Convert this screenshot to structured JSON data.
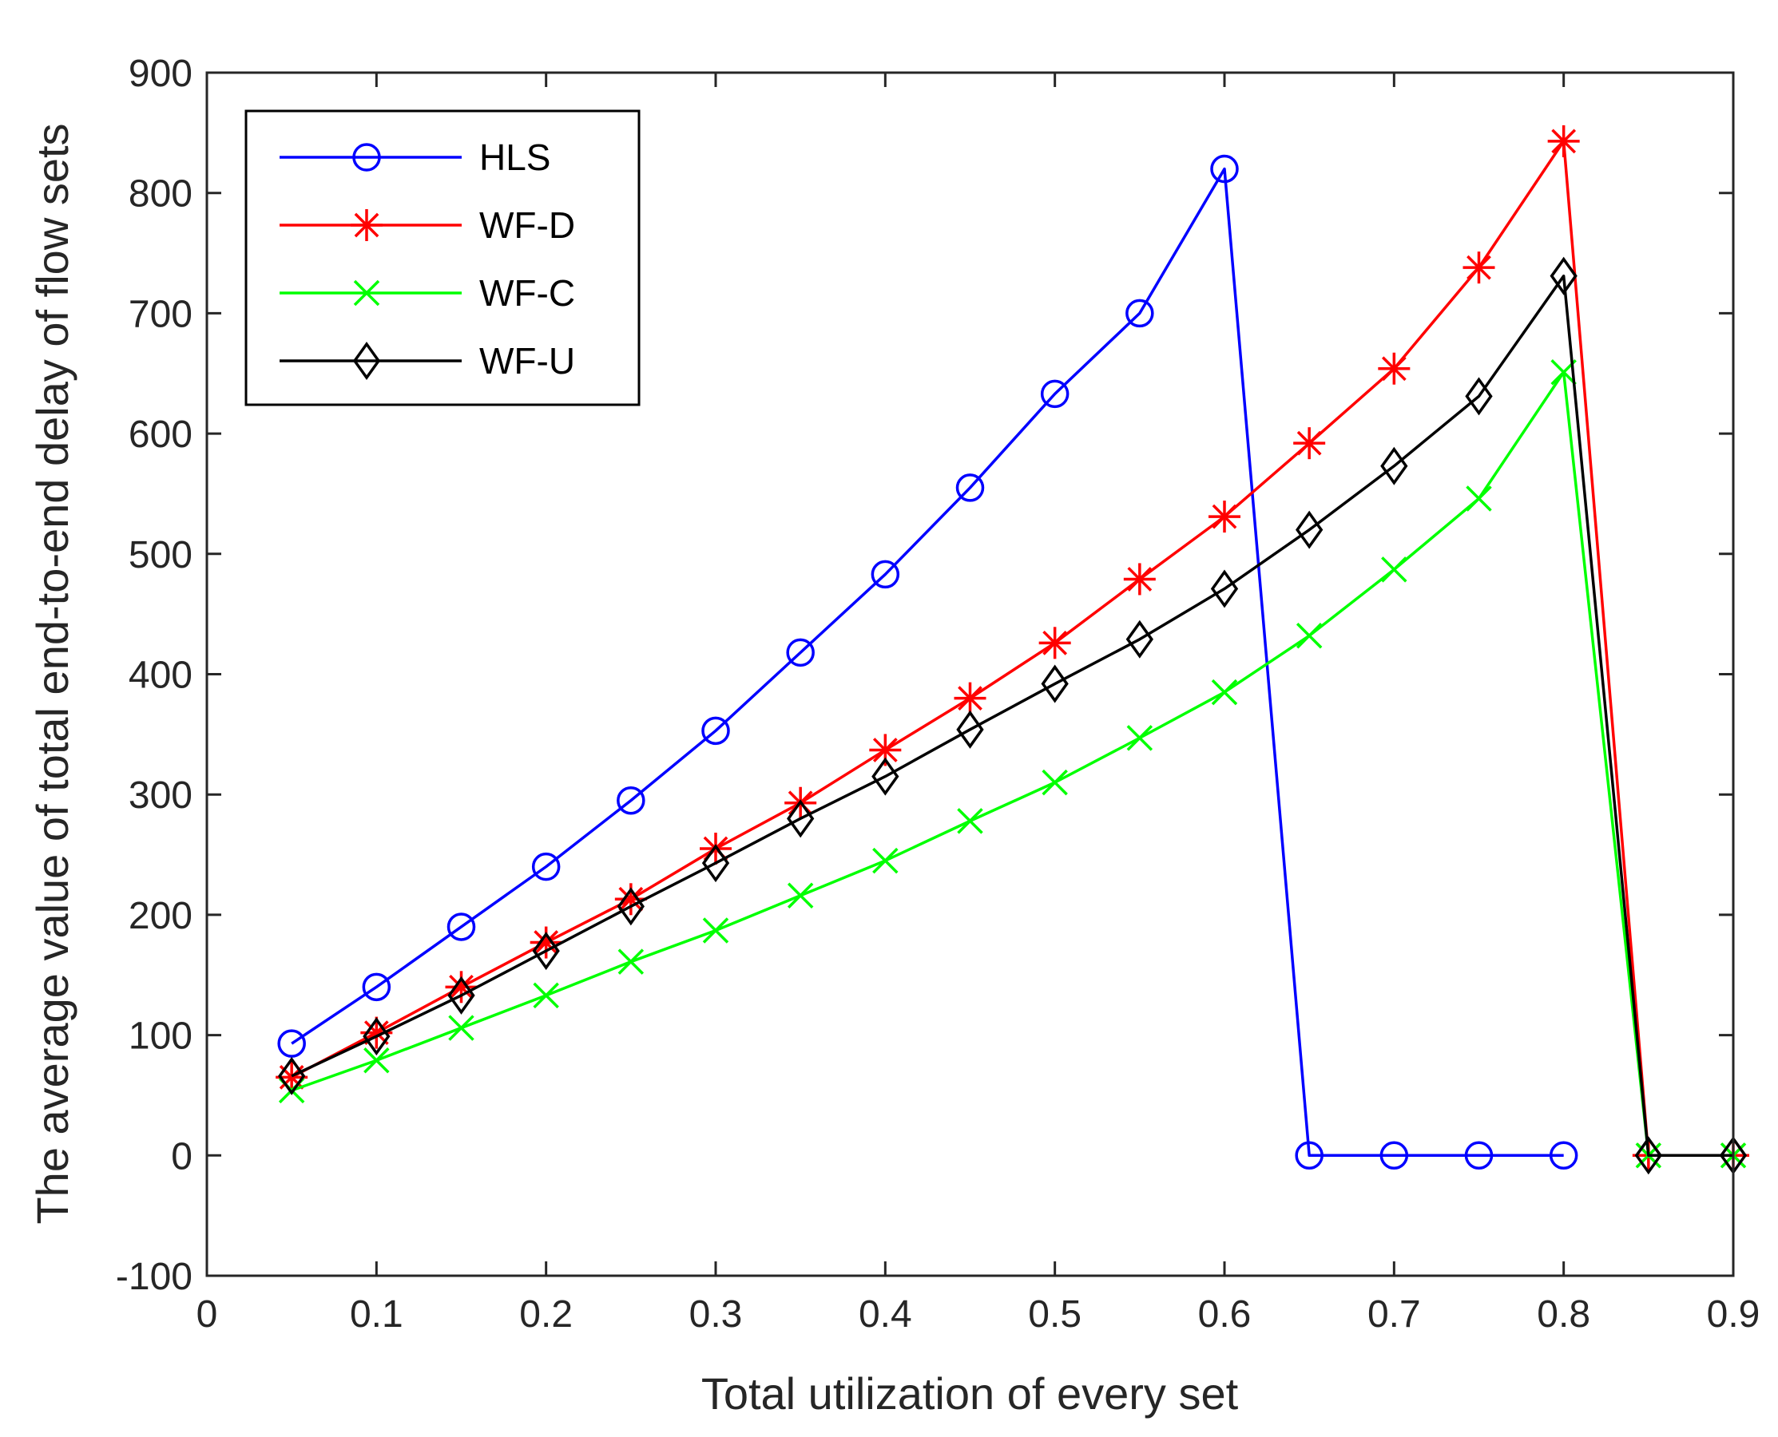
{
  "chart_data": {
    "type": "line",
    "title": "",
    "xlabel": "Total utilization of every set",
    "ylabel": "The average value of total end-to-end delay of flow sets",
    "xlim": [
      0,
      0.9
    ],
    "ylim": [
      -100,
      900
    ],
    "xticks": [
      "0",
      "0.1",
      "0.2",
      "0.3",
      "0.4",
      "0.5",
      "0.6",
      "0.7",
      "0.8",
      "0.9"
    ],
    "yticks": [
      "-100",
      "0",
      "100",
      "200",
      "300",
      "400",
      "500",
      "600",
      "700",
      "800",
      "900"
    ],
    "x": [
      0.05,
      0.1,
      0.15,
      0.2,
      0.25,
      0.3,
      0.35,
      0.4,
      0.45,
      0.5,
      0.55,
      0.6,
      0.65,
      0.7,
      0.75,
      0.8,
      0.85,
      0.9
    ],
    "legend_position": "top-left",
    "grid": false,
    "series": [
      {
        "name": "HLS",
        "color": "#0000ff",
        "marker": "circle",
        "values": [
          93,
          140,
          190,
          240,
          295,
          353,
          418,
          483,
          555,
          633,
          700,
          820,
          0,
          0,
          0,
          0,
          null,
          null
        ]
      },
      {
        "name": "WF-D",
        "color": "#ff0000",
        "marker": "asterisk",
        "values": [
          65,
          102,
          140,
          177,
          213,
          255,
          293,
          337,
          380,
          426,
          479,
          531,
          592,
          654,
          738,
          843,
          0,
          0
        ]
      },
      {
        "name": "WF-C",
        "color": "#00ff00",
        "marker": "x",
        "values": [
          54,
          79,
          106,
          133,
          161,
          187,
          216,
          245,
          278,
          310,
          347,
          385,
          432,
          487,
          546,
          651,
          0,
          0
        ]
      },
      {
        "name": "WF-U",
        "color": "#000000",
        "marker": "diamond",
        "values": [
          66,
          99,
          133,
          170,
          207,
          243,
          280,
          315,
          354,
          392,
          429,
          471,
          520,
          573,
          631,
          731,
          0,
          0
        ]
      }
    ]
  }
}
